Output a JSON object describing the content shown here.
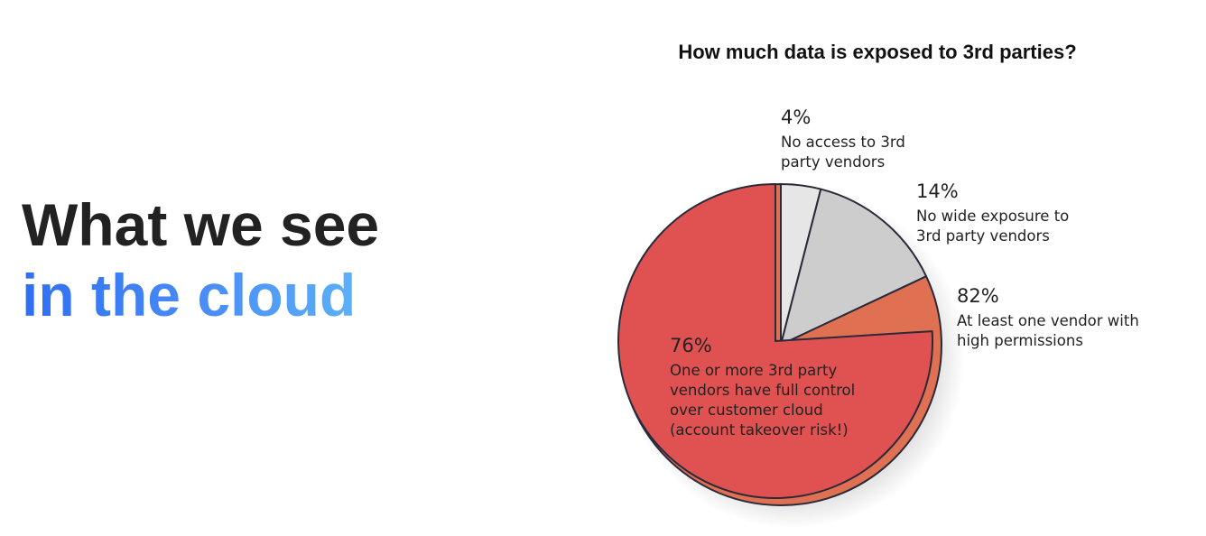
{
  "headline": {
    "line1": "What we see",
    "line2": "in the cloud"
  },
  "colors": {
    "headline_text": "#222222",
    "headline_gradient_start": "#2f6ff2",
    "headline_gradient_end": "#5cb0f7",
    "slice_no_access": "#e6e6e6",
    "slice_no_wide_exposure": "#cdcdcd",
    "slice_high_permissions": "#e07052",
    "slice_full_control": "#e05252",
    "outline": "#2a2a3a"
  },
  "chart_data": {
    "type": "pie",
    "title": "How much data is exposed to 3rd parties?",
    "slices": [
      {
        "key": "no_access",
        "value": 4,
        "pct_label": "4%",
        "lines": [
          "No access to 3rd",
          "party vendors"
        ]
      },
      {
        "key": "no_wide_exposure",
        "value": 14,
        "pct_label": "14%",
        "lines": [
          "No wide exposure to",
          "3rd party vendors"
        ]
      },
      {
        "key": "high_permissions",
        "value": 82,
        "pct_label": "82%",
        "lines": [
          "At least one vendor with",
          "high permissions"
        ]
      }
    ],
    "nested_slice": {
      "key": "full_control",
      "value": 76,
      "pct_label": "76%",
      "lines": [
        "One or more 3rd party",
        "vendors have full control",
        "over customer cloud",
        "(account takeover risk!)"
      ]
    }
  }
}
